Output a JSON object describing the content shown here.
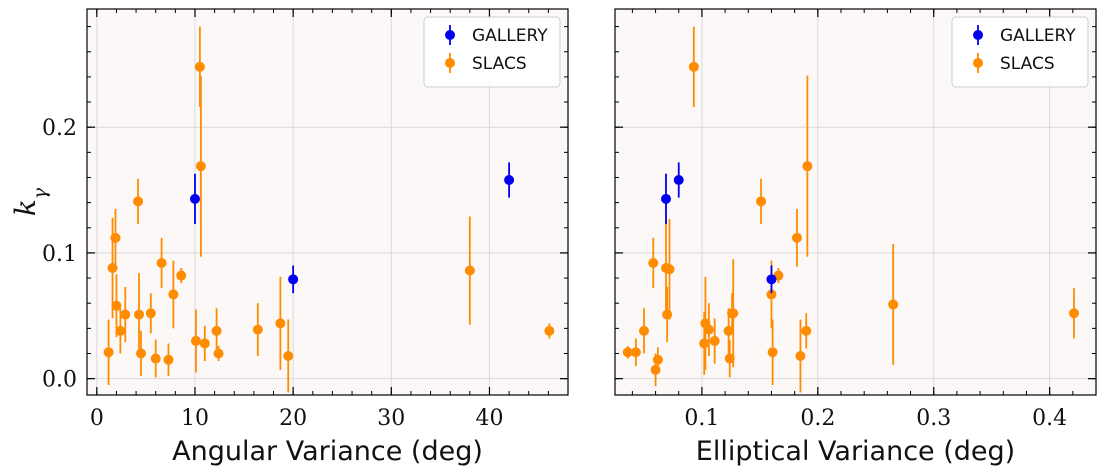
{
  "chart_data": [
    {
      "type": "scatter",
      "title": "",
      "xlabel": "Angular Variance (deg)",
      "ylabel": "k",
      "ylabel_sub": "γ",
      "xlim": [
        -1,
        48
      ],
      "ylim": [
        -0.013,
        0.294
      ],
      "xticks": [
        0,
        10,
        20,
        30,
        40
      ],
      "xtick_labels": [
        "0",
        "10",
        "20",
        "30",
        "40"
      ],
      "yticks": [
        0.0,
        0.1,
        0.2
      ],
      "ytick_labels": [
        "0.0",
        "0.1",
        "0.2"
      ],
      "grid": true,
      "legend_position": "top-right",
      "series": [
        {
          "name": "GALLERY",
          "color": "#0000ee",
          "points": [
            {
              "x": 10.0,
              "y": 0.143,
              "err": 0.02
            },
            {
              "x": 20.0,
              "y": 0.079,
              "err": 0.011
            },
            {
              "x": 42.0,
              "y": 0.158,
              "err": 0.014
            }
          ]
        },
        {
          "name": "SLACS",
          "color": "#ff8c00",
          "points": [
            {
              "x": 1.2,
              "y": 0.021,
              "err": 0.026
            },
            {
              "x": 1.6,
              "y": 0.088,
              "err": 0.04
            },
            {
              "x": 1.9,
              "y": 0.112,
              "err": 0.023
            },
            {
              "x": 2.0,
              "y": 0.058,
              "err": 0.025
            },
            {
              "x": 2.4,
              "y": 0.038,
              "err": 0.018
            },
            {
              "x": 2.9,
              "y": 0.051,
              "err": 0.022
            },
            {
              "x": 4.2,
              "y": 0.141,
              "err": 0.018
            },
            {
              "x": 4.3,
              "y": 0.051,
              "err": 0.033
            },
            {
              "x": 4.5,
              "y": 0.02,
              "err": 0.018
            },
            {
              "x": 5.5,
              "y": 0.052,
              "err": 0.016
            },
            {
              "x": 6.0,
              "y": 0.016,
              "err": 0.015
            },
            {
              "x": 6.6,
              "y": 0.092,
              "err": 0.02
            },
            {
              "x": 7.3,
              "y": 0.015,
              "err": 0.013
            },
            {
              "x": 7.8,
              "y": 0.067,
              "err": 0.027
            },
            {
              "x": 8.6,
              "y": 0.082,
              "err": 0.006
            },
            {
              "x": 10.1,
              "y": 0.03,
              "err": 0.025
            },
            {
              "x": 10.5,
              "y": 0.248,
              "err": 0.032
            },
            {
              "x": 10.6,
              "y": 0.169,
              "err": 0.072
            },
            {
              "x": 11.0,
              "y": 0.028,
              "err": 0.014
            },
            {
              "x": 12.2,
              "y": 0.038,
              "err": 0.018
            },
            {
              "x": 12.4,
              "y": 0.02,
              "err": 0.006
            },
            {
              "x": 16.4,
              "y": 0.039,
              "err": 0.021
            },
            {
              "x": 18.7,
              "y": 0.044,
              "err": 0.037
            },
            {
              "x": 19.5,
              "y": 0.018,
              "err": 0.029
            },
            {
              "x": 38.0,
              "y": 0.086,
              "err": 0.043
            },
            {
              "x": 46.1,
              "y": 0.038,
              "err": 0.006
            }
          ]
        }
      ]
    },
    {
      "type": "scatter",
      "title": "",
      "xlabel": "Elliptical Variance (deg)",
      "ylabel": "",
      "xlim": [
        0.025,
        0.44
      ],
      "ylim": [
        -0.013,
        0.294
      ],
      "xticks": [
        0.1,
        0.2,
        0.3,
        0.4
      ],
      "xtick_labels": [
        "0.1",
        "0.2",
        "0.3",
        "0.4"
      ],
      "yticks": [
        0.0,
        0.1,
        0.2
      ],
      "grid": true,
      "legend_position": "top-right",
      "series": [
        {
          "name": "GALLERY",
          "color": "#0000ee",
          "points": [
            {
              "x": 0.069,
              "y": 0.143,
              "err": 0.02
            },
            {
              "x": 0.08,
              "y": 0.158,
              "err": 0.014
            },
            {
              "x": 0.16,
              "y": 0.079,
              "err": 0.011
            }
          ]
        },
        {
          "name": "SLACS",
          "color": "#ff8c00",
          "points": [
            {
              "x": 0.036,
              "y": 0.021,
              "err": 0.005
            },
            {
              "x": 0.043,
              "y": 0.021,
              "err": 0.011
            },
            {
              "x": 0.05,
              "y": 0.038,
              "err": 0.018
            },
            {
              "x": 0.058,
              "y": 0.092,
              "err": 0.02
            },
            {
              "x": 0.06,
              "y": 0.007,
              "err": 0.013
            },
            {
              "x": 0.062,
              "y": 0.015,
              "err": 0.01
            },
            {
              "x": 0.069,
              "y": 0.088,
              "err": 0.04
            },
            {
              "x": 0.07,
              "y": 0.051,
              "err": 0.022
            },
            {
              "x": 0.072,
              "y": 0.087,
              "err": 0.04
            },
            {
              "x": 0.093,
              "y": 0.248,
              "err": 0.032
            },
            {
              "x": 0.102,
              "y": 0.028,
              "err": 0.025
            },
            {
              "x": 0.103,
              "y": 0.044,
              "err": 0.037
            },
            {
              "x": 0.106,
              "y": 0.039,
              "err": 0.021
            },
            {
              "x": 0.111,
              "y": 0.03,
              "err": 0.018
            },
            {
              "x": 0.123,
              "y": 0.038,
              "err": 0.018
            },
            {
              "x": 0.124,
              "y": 0.016,
              "err": 0.015
            },
            {
              "x": 0.126,
              "y": 0.052,
              "err": 0.016
            },
            {
              "x": 0.127,
              "y": 0.052,
              "err": 0.043
            },
            {
              "x": 0.151,
              "y": 0.141,
              "err": 0.018
            },
            {
              "x": 0.16,
              "y": 0.067,
              "err": 0.027
            },
            {
              "x": 0.161,
              "y": 0.021,
              "err": 0.026
            },
            {
              "x": 0.166,
              "y": 0.082,
              "err": 0.006
            },
            {
              "x": 0.182,
              "y": 0.112,
              "err": 0.023
            },
            {
              "x": 0.185,
              "y": 0.018,
              "err": 0.029
            },
            {
              "x": 0.19,
              "y": 0.038,
              "err": 0.014
            },
            {
              "x": 0.191,
              "y": 0.169,
              "err": 0.072
            },
            {
              "x": 0.265,
              "y": 0.059,
              "err": 0.048
            },
            {
              "x": 0.421,
              "y": 0.052,
              "err": 0.02
            }
          ]
        }
      ]
    }
  ]
}
